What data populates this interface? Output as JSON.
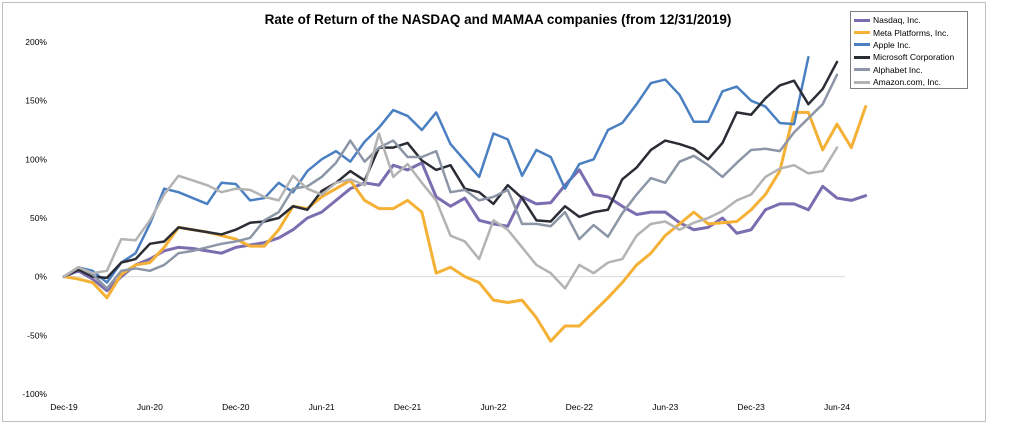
{
  "chart_data": {
    "type": "line",
    "title": "Rate of Return of the NASDAQ and MAMAA companies (from 12/31/2019)",
    "xlabel": "",
    "ylabel": "",
    "x_tick_labels": [
      "Dec-19",
      "Jun-20",
      "Dec-20",
      "Jun-21",
      "Dec-21",
      "Jun-22",
      "Dec-22",
      "Jun-23",
      "Dec-23",
      "Jun-24"
    ],
    "y_tick_labels": [
      "-100%",
      "-50%",
      "0%",
      "50%",
      "100%",
      "150%",
      "200%"
    ],
    "y_ticks": [
      -100,
      -50,
      0,
      50,
      100,
      150,
      200
    ],
    "ylim": [
      -100,
      200
    ],
    "x_range": [
      0,
      54
    ],
    "x_unit": "months since Dec-19",
    "grid": false,
    "legend_position": "top-right",
    "series": [
      {
        "name": "Nasdaq, Inc.",
        "color": "#7b6db0",
        "width": 3,
        "values": [
          0,
          5,
          -2,
          -12,
          0,
          10,
          15,
          22,
          25,
          24,
          22,
          20,
          25,
          27,
          29,
          33,
          40,
          50,
          55,
          65,
          75,
          80,
          78,
          95,
          91,
          97,
          68,
          60,
          67,
          48,
          45,
          43,
          68,
          62,
          63,
          78,
          91,
          70,
          68,
          60,
          53,
          55,
          55,
          46,
          40,
          42,
          50,
          37,
          40,
          57,
          62,
          62,
          57,
          77,
          67,
          65,
          69
        ]
      },
      {
        "name": "Meta Platforms, Inc.",
        "color": "#f4b136",
        "width": 3,
        "values": [
          0,
          -2,
          -5,
          -18,
          2,
          10,
          12,
          25,
          42,
          40,
          38,
          35,
          32,
          26,
          26,
          40,
          60,
          58,
          68,
          75,
          82,
          65,
          58,
          58,
          65,
          55,
          3,
          8,
          0,
          -5,
          -20,
          -22,
          -20,
          -35,
          -55,
          -42,
          -42,
          -30,
          -18,
          -5,
          10,
          20,
          35,
          45,
          55,
          45,
          46,
          47,
          57,
          70,
          90,
          140,
          140,
          108,
          130,
          110,
          145
        ]
      },
      {
        "name": "Apple Inc.",
        "color": "#4a7fc1",
        "width": 2.5,
        "values": [
          0,
          8,
          5,
          -5,
          12,
          20,
          45,
          75,
          72,
          67,
          62,
          80,
          79,
          65,
          67,
          80,
          72,
          90,
          100,
          107,
          98,
          115,
          127,
          142,
          137,
          125,
          140,
          113,
          99,
          85,
          122,
          117,
          86,
          108,
          102,
          75,
          96,
          100,
          125,
          131,
          147,
          165,
          168,
          155,
          132,
          132,
          158,
          162,
          150,
          145,
          131,
          130,
          187
        ]
      },
      {
        "name": "Microsoft Corporation",
        "color": "#2b2d36",
        "width": 2.5,
        "values": [
          0,
          6,
          0,
          -1,
          12,
          15,
          28,
          30,
          42,
          40,
          38,
          36,
          40,
          46,
          47,
          50,
          60,
          57,
          73,
          80,
          90,
          82,
          110,
          110,
          114,
          99,
          91,
          95,
          75,
          72,
          62,
          78,
          67,
          48,
          47,
          60,
          51,
          55,
          57,
          83,
          93,
          108,
          116,
          113,
          109,
          100,
          114,
          140,
          138,
          152,
          163,
          167,
          147,
          160,
          183
        ]
      },
      {
        "name": "Alphabet Inc.",
        "color": "#8c96a6",
        "width": 2.5,
        "values": [
          0,
          8,
          2,
          -10,
          5,
          7,
          5,
          10,
          20,
          22,
          25,
          28,
          30,
          33,
          48,
          55,
          75,
          77,
          85,
          97,
          116,
          98,
          110,
          116,
          102,
          102,
          107,
          72,
          74,
          65,
          68,
          74,
          45,
          45,
          43,
          55,
          32,
          44,
          34,
          54,
          70,
          84,
          80,
          98,
          103,
          95,
          85,
          97,
          108,
          109,
          107,
          123,
          135,
          147,
          172
        ]
      },
      {
        "name": "Amazon.com, Inc.",
        "color": "#b3b3b3",
        "width": 2.5,
        "values": [
          0,
          8,
          3,
          5,
          32,
          31,
          48,
          70,
          86,
          82,
          78,
          72,
          75,
          74,
          68,
          65,
          86,
          75,
          70,
          80,
          83,
          78,
          122,
          85,
          96,
          80,
          65,
          35,
          30,
          15,
          48,
          40,
          25,
          10,
          3,
          -10,
          10,
          3,
          12,
          15,
          35,
          45,
          47,
          40,
          46,
          50,
          56,
          65,
          70,
          85,
          92,
          95,
          88,
          90,
          110
        ]
      }
    ]
  }
}
